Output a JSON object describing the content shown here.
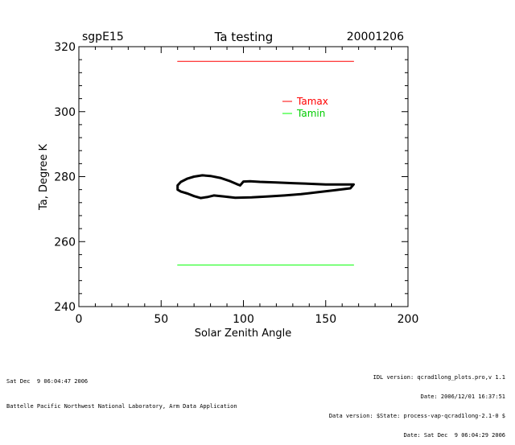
{
  "chart_data": {
    "type": "line",
    "title": "Ta testing",
    "left_label": "sgpE15",
    "right_label": "20001206",
    "xlabel": "Solar Zenith Angle",
    "ylabel": "Ta, Degree K",
    "xlim": [
      0,
      200
    ],
    "ylim": [
      240,
      320
    ],
    "x_ticks": [
      0,
      50,
      100,
      150,
      200
    ],
    "y_ticks": [
      240,
      260,
      280,
      300,
      320
    ],
    "grid": false,
    "legend_position": "top-right",
    "series": [
      {
        "name": "Tamax",
        "color": "#ff0000",
        "x": [
          60,
          167
        ],
        "y": [
          315.5,
          315.5
        ]
      },
      {
        "name": "Tamin",
        "color": "#00ff00",
        "x": [
          60,
          167
        ],
        "y": [
          252.8,
          252.8
        ]
      },
      {
        "name": "",
        "color": "#000000",
        "x": [
          98,
          100,
          104,
          110,
          120,
          130,
          140,
          150,
          160,
          167,
          165,
          155,
          145,
          135,
          125,
          115,
          105,
          95,
          88,
          82,
          78,
          74,
          70,
          66,
          62,
          60,
          60,
          62,
          66,
          70,
          75,
          80,
          86,
          92,
          96,
          98
        ],
        "y": [
          277.3,
          278.5,
          278.6,
          278.4,
          278.2,
          278.0,
          277.8,
          277.6,
          277.6,
          277.6,
          276.4,
          275.8,
          275.2,
          274.6,
          274.2,
          273.9,
          273.6,
          273.5,
          273.9,
          274.2,
          273.7,
          273.4,
          274.0,
          274.8,
          275.4,
          276.0,
          277.3,
          278.4,
          279.4,
          280.0,
          280.4,
          280.2,
          279.6,
          278.6,
          277.7,
          277.3
        ]
      }
    ]
  },
  "footer": {
    "left_line1": "Sat Dec  9 06:04:47 2006",
    "left_line2": "Battelle Pacific Northwest National Laboratory, Arm Data Application",
    "right_line1": "IDL version: qcrad1long_plots.pro,v 1.1",
    "right_line2": "Date: 2006/12/01 16:37:51",
    "right_line3": "Data version: $State: process-vap-qcrad1long-2.1-0 $",
    "right_line4": "Date: Sat Dec  9 06:04:29 2006"
  }
}
